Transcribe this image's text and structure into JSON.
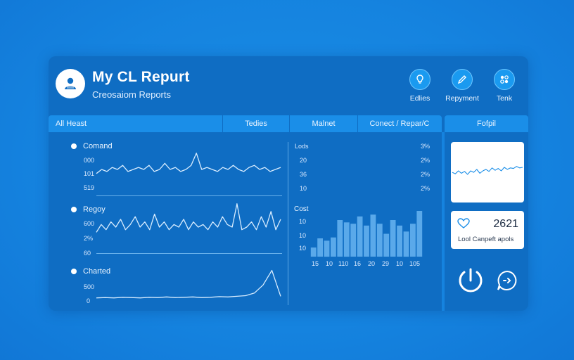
{
  "header": {
    "title": "My CL Repurt",
    "subtitle": "Creosaiom Reports",
    "actions": [
      {
        "label": "Edlies",
        "icon": "lightbulb-icon"
      },
      {
        "label": "Repyment",
        "icon": "pencil-icon"
      },
      {
        "label": "Tenk",
        "icon": "grid-icon"
      }
    ]
  },
  "tabs": [
    "All Heast",
    "Tedies",
    "Malnet",
    "Conect / Repar/C"
  ],
  "side_tab": "Fofpil",
  "left_panel": {
    "rows": [
      {
        "label": "Comand",
        "ticks": [
          "000",
          "101",
          "519"
        ]
      },
      {
        "label": "Regoy",
        "ticks": [
          "600",
          "2%",
          "60"
        ]
      },
      {
        "label": "Charted",
        "ticks": [
          "500",
          "0"
        ]
      }
    ]
  },
  "right_panel": {
    "top_left_ticks": [
      "Lods",
      "20",
      "36",
      "10"
    ],
    "top_right_ticks": [
      "3%",
      "2%",
      "2%",
      "2%"
    ],
    "chart_label": "Cost",
    "y_ticks": [
      "10",
      "10",
      "10"
    ],
    "x_ticks": [
      "15",
      "10",
      "110",
      "16",
      "20",
      "29",
      "10",
      "105"
    ]
  },
  "stat": {
    "value": "2621",
    "label": "Lool Canpeft apols"
  },
  "colors": {
    "panel": "#0f6dc3",
    "accent": "#1a8ee8",
    "line": "#d7ecff",
    "bar": "#5aa9ea"
  },
  "chart_data": [
    {
      "type": "line",
      "series": [
        {
          "values": [
            0.4,
            0.5,
            0.45,
            0.55,
            0.5,
            0.6,
            0.45,
            0.5,
            0.55,
            0.5,
            0.6,
            0.45,
            0.5,
            0.65,
            0.5,
            0.55,
            0.45,
            0.5,
            0.6,
            0.9,
            0.5,
            0.55,
            0.5,
            0.45,
            0.55,
            0.5,
            0.6,
            0.5,
            0.45,
            0.55,
            0.6,
            0.5,
            0.55,
            0.45,
            0.5,
            0.55
          ]
        }
      ],
      "ylim": [
        0,
        1
      ]
    },
    {
      "type": "line",
      "series": [
        {
          "values": [
            0.4,
            0.55,
            0.45,
            0.6,
            0.5,
            0.65,
            0.45,
            0.55,
            0.7,
            0.5,
            0.6,
            0.45,
            0.75,
            0.5,
            0.6,
            0.45,
            0.55,
            0.5,
            0.65,
            0.45,
            0.6,
            0.5,
            0.55,
            0.45,
            0.6,
            0.5,
            0.7,
            0.55,
            0.5,
            0.95,
            0.45,
            0.5,
            0.6,
            0.45,
            0.7,
            0.5,
            0.8,
            0.45,
            0.65
          ]
        }
      ],
      "ylim": [
        0,
        1
      ]
    },
    {
      "type": "line",
      "series": [
        {
          "values": [
            0.05,
            0.06,
            0.05,
            0.07,
            0.06,
            0.05,
            0.07,
            0.06,
            0.08,
            0.06,
            0.07,
            0.08,
            0.06,
            0.07,
            0.09,
            0.08,
            0.1,
            0.12,
            0.2,
            0.45,
            0.9,
            0.1
          ]
        }
      ],
      "ylim": [
        0,
        1
      ]
    },
    {
      "type": "bar",
      "values": [
        0.2,
        0.4,
        0.35,
        0.42,
        0.8,
        0.75,
        0.72,
        0.88,
        0.68,
        0.92,
        0.72,
        0.5,
        0.8,
        0.68,
        0.55,
        0.72,
        1.0
      ],
      "ylim": [
        0,
        1
      ]
    },
    {
      "type": "line",
      "series": [
        {
          "values": [
            0.45,
            0.4,
            0.5,
            0.42,
            0.48,
            0.38,
            0.5,
            0.45,
            0.55,
            0.42,
            0.5,
            0.55,
            0.48,
            0.6,
            0.52,
            0.58,
            0.5,
            0.62,
            0.55,
            0.6,
            0.58,
            0.65,
            0.6,
            0.62
          ]
        }
      ],
      "ylim": [
        0,
        1
      ]
    }
  ]
}
